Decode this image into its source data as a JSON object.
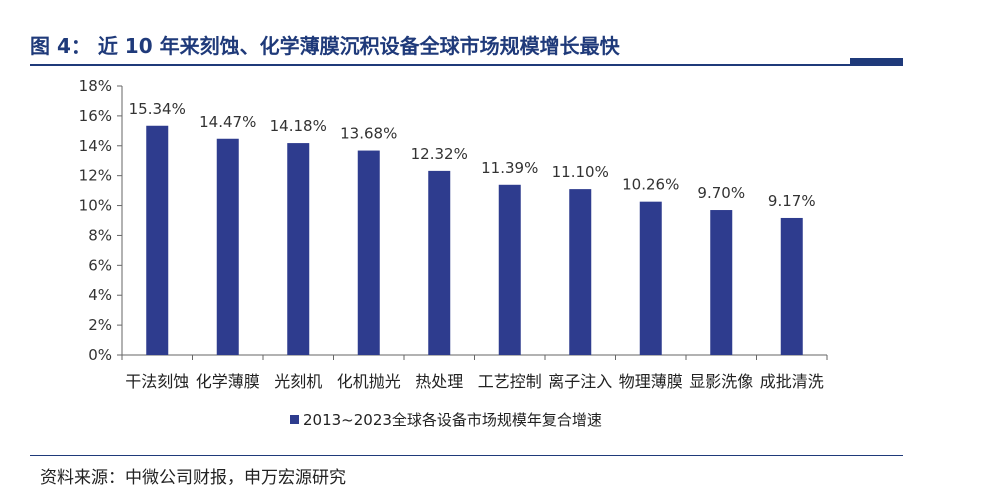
{
  "title": "图 4： 近 10 年来刻蚀、化学薄膜沉积设备全球市场规模增长最快",
  "source": "资料来源：中微公司财报，申万宏源研究",
  "colors": {
    "bar": "#2e3c8e",
    "title": "#1f3a7a",
    "axis": "#666666"
  },
  "chart_data": {
    "type": "bar",
    "categories": [
      "干法刻蚀",
      "化学薄膜",
      "光刻机",
      "化机抛光",
      "热处理",
      "工艺控制",
      "离子注入",
      "物理薄膜",
      "显影洗像",
      "成批清洗"
    ],
    "series": [
      {
        "name": "2013~2023全球各设备市场规模年复合增速",
        "values": [
          15.34,
          14.47,
          14.18,
          13.68,
          12.32,
          11.39,
          11.1,
          10.26,
          9.7,
          9.17
        ]
      }
    ],
    "data_labels": [
      "15.34%",
      "14.47%",
      "14.18%",
      "13.68%",
      "12.32%",
      "11.39%",
      "11.10%",
      "10.26%",
      "9.70%",
      "9.17%"
    ],
    "y_ticks": [
      "0%",
      "2%",
      "4%",
      "6%",
      "8%",
      "10%",
      "12%",
      "14%",
      "16%",
      "18%"
    ],
    "ylim": [
      0,
      18
    ],
    "title": "",
    "xlabel": "",
    "ylabel": "",
    "grid": false,
    "legend": "bottom"
  }
}
